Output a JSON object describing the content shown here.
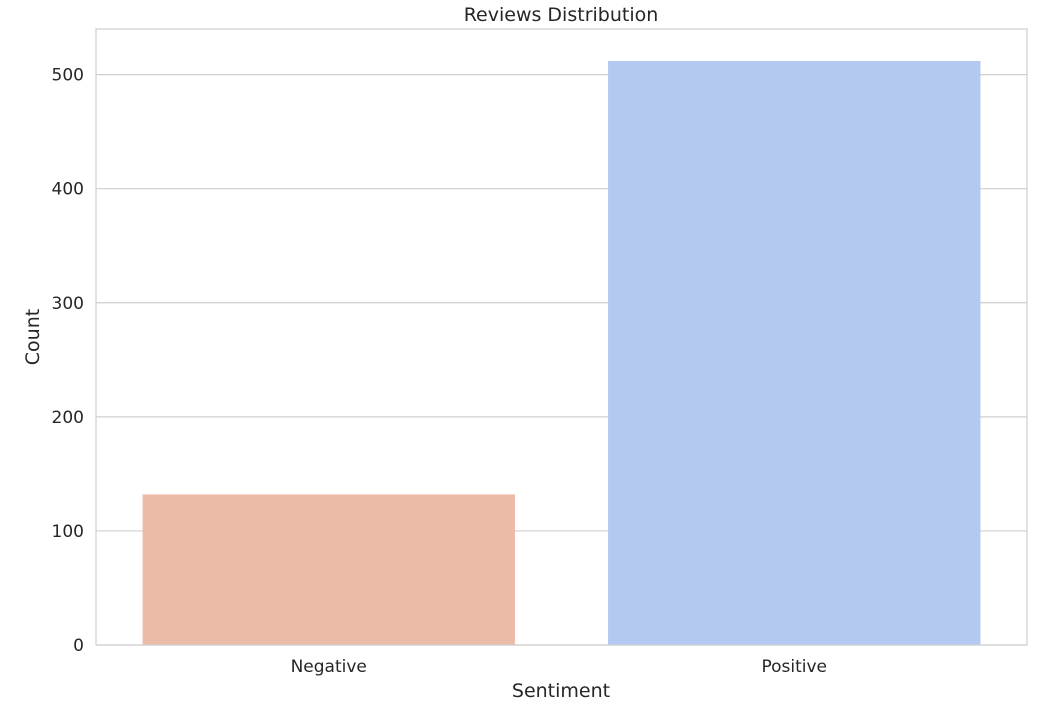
{
  "chart_data": {
    "type": "bar",
    "title": "Reviews Distribution",
    "xlabel": "Sentiment",
    "ylabel": "Count",
    "categories": [
      "Negative",
      "Positive"
    ],
    "values": [
      132,
      512
    ],
    "colors": [
      "#ecbba7",
      "#b4c9f2"
    ],
    "ylim": [
      0,
      540
    ],
    "yticks": [
      0,
      100,
      200,
      300,
      400,
      500
    ],
    "grid": true,
    "legend": "none"
  }
}
